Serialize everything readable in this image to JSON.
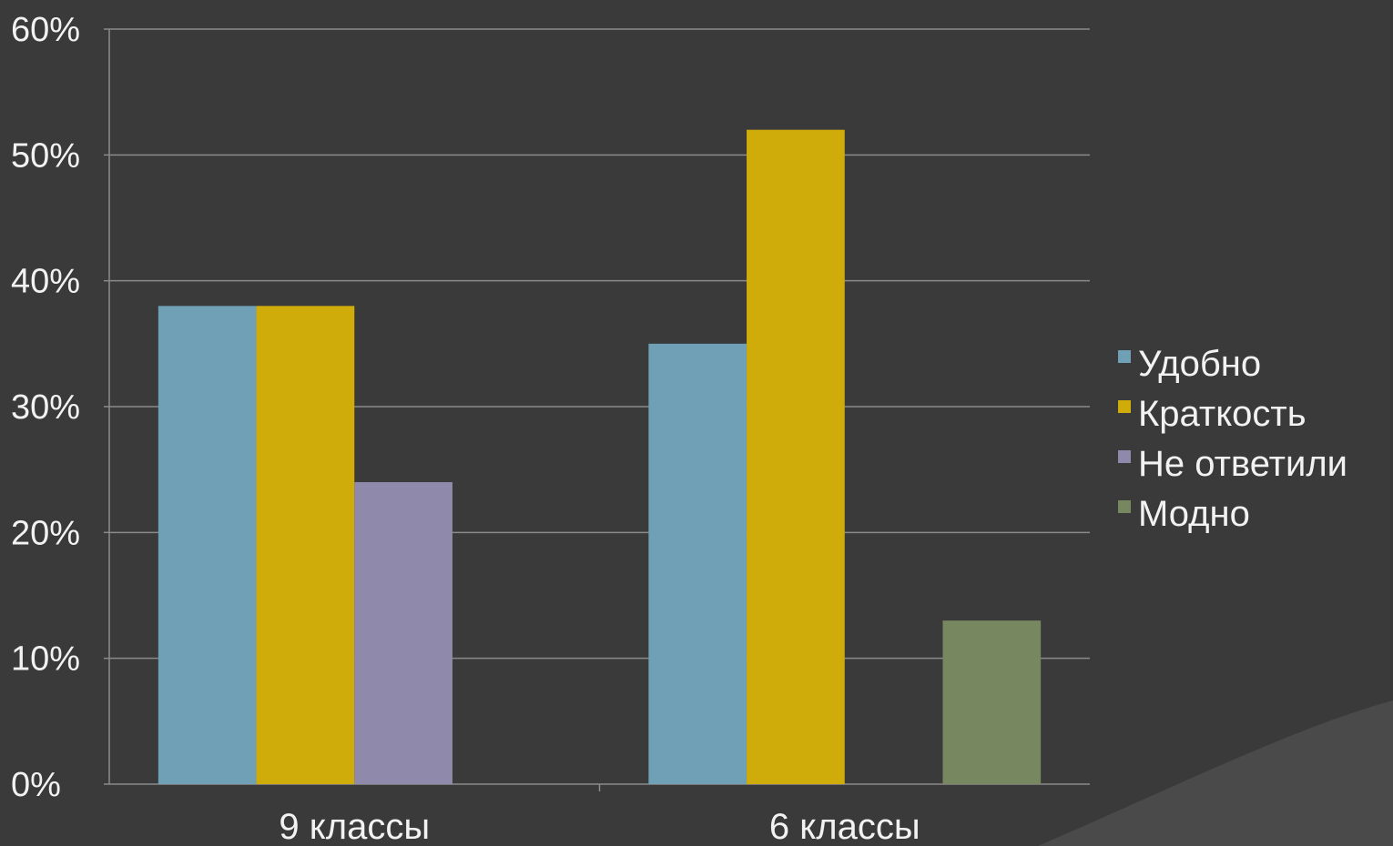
{
  "colors": {
    "background": "#3a3a3a",
    "gridline": "#8a8a8a",
    "text": "#f2f2f2"
  },
  "chart_data": {
    "type": "bar",
    "categories": [
      "9 классы",
      "6 классы"
    ],
    "series": [
      {
        "name": "Удобно",
        "color": "#6fa0b5",
        "values": [
          38,
          35
        ]
      },
      {
        "name": "Краткость",
        "color": "#d0ac0b",
        "values": [
          38,
          52
        ]
      },
      {
        "name": "Не ответили",
        "color": "#8f8aab",
        "values": [
          24,
          0
        ]
      },
      {
        "name": "Модно",
        "color": "#778760",
        "values": [
          0,
          13
        ]
      }
    ],
    "y_ticks": [
      "0%",
      "10%",
      "20%",
      "30%",
      "40%",
      "50%",
      "60%"
    ],
    "ylim": [
      0,
      60
    ],
    "grid": true,
    "legend": "right"
  }
}
